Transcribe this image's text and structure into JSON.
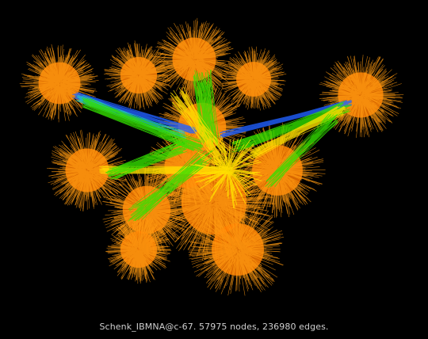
{
  "caption": "Schenk_IBMNA@c-67. 57975 nodes, 236980 edges.",
  "colors": {
    "background": "#000000",
    "hub_orange": "#ff7a00",
    "bright_orange": "#ff9a10",
    "yellow": "#ffe000",
    "green": "#33e000",
    "cyan": "#20c8c8",
    "blue": "#2060ff",
    "caption_text": "#cfcfcf"
  }
}
